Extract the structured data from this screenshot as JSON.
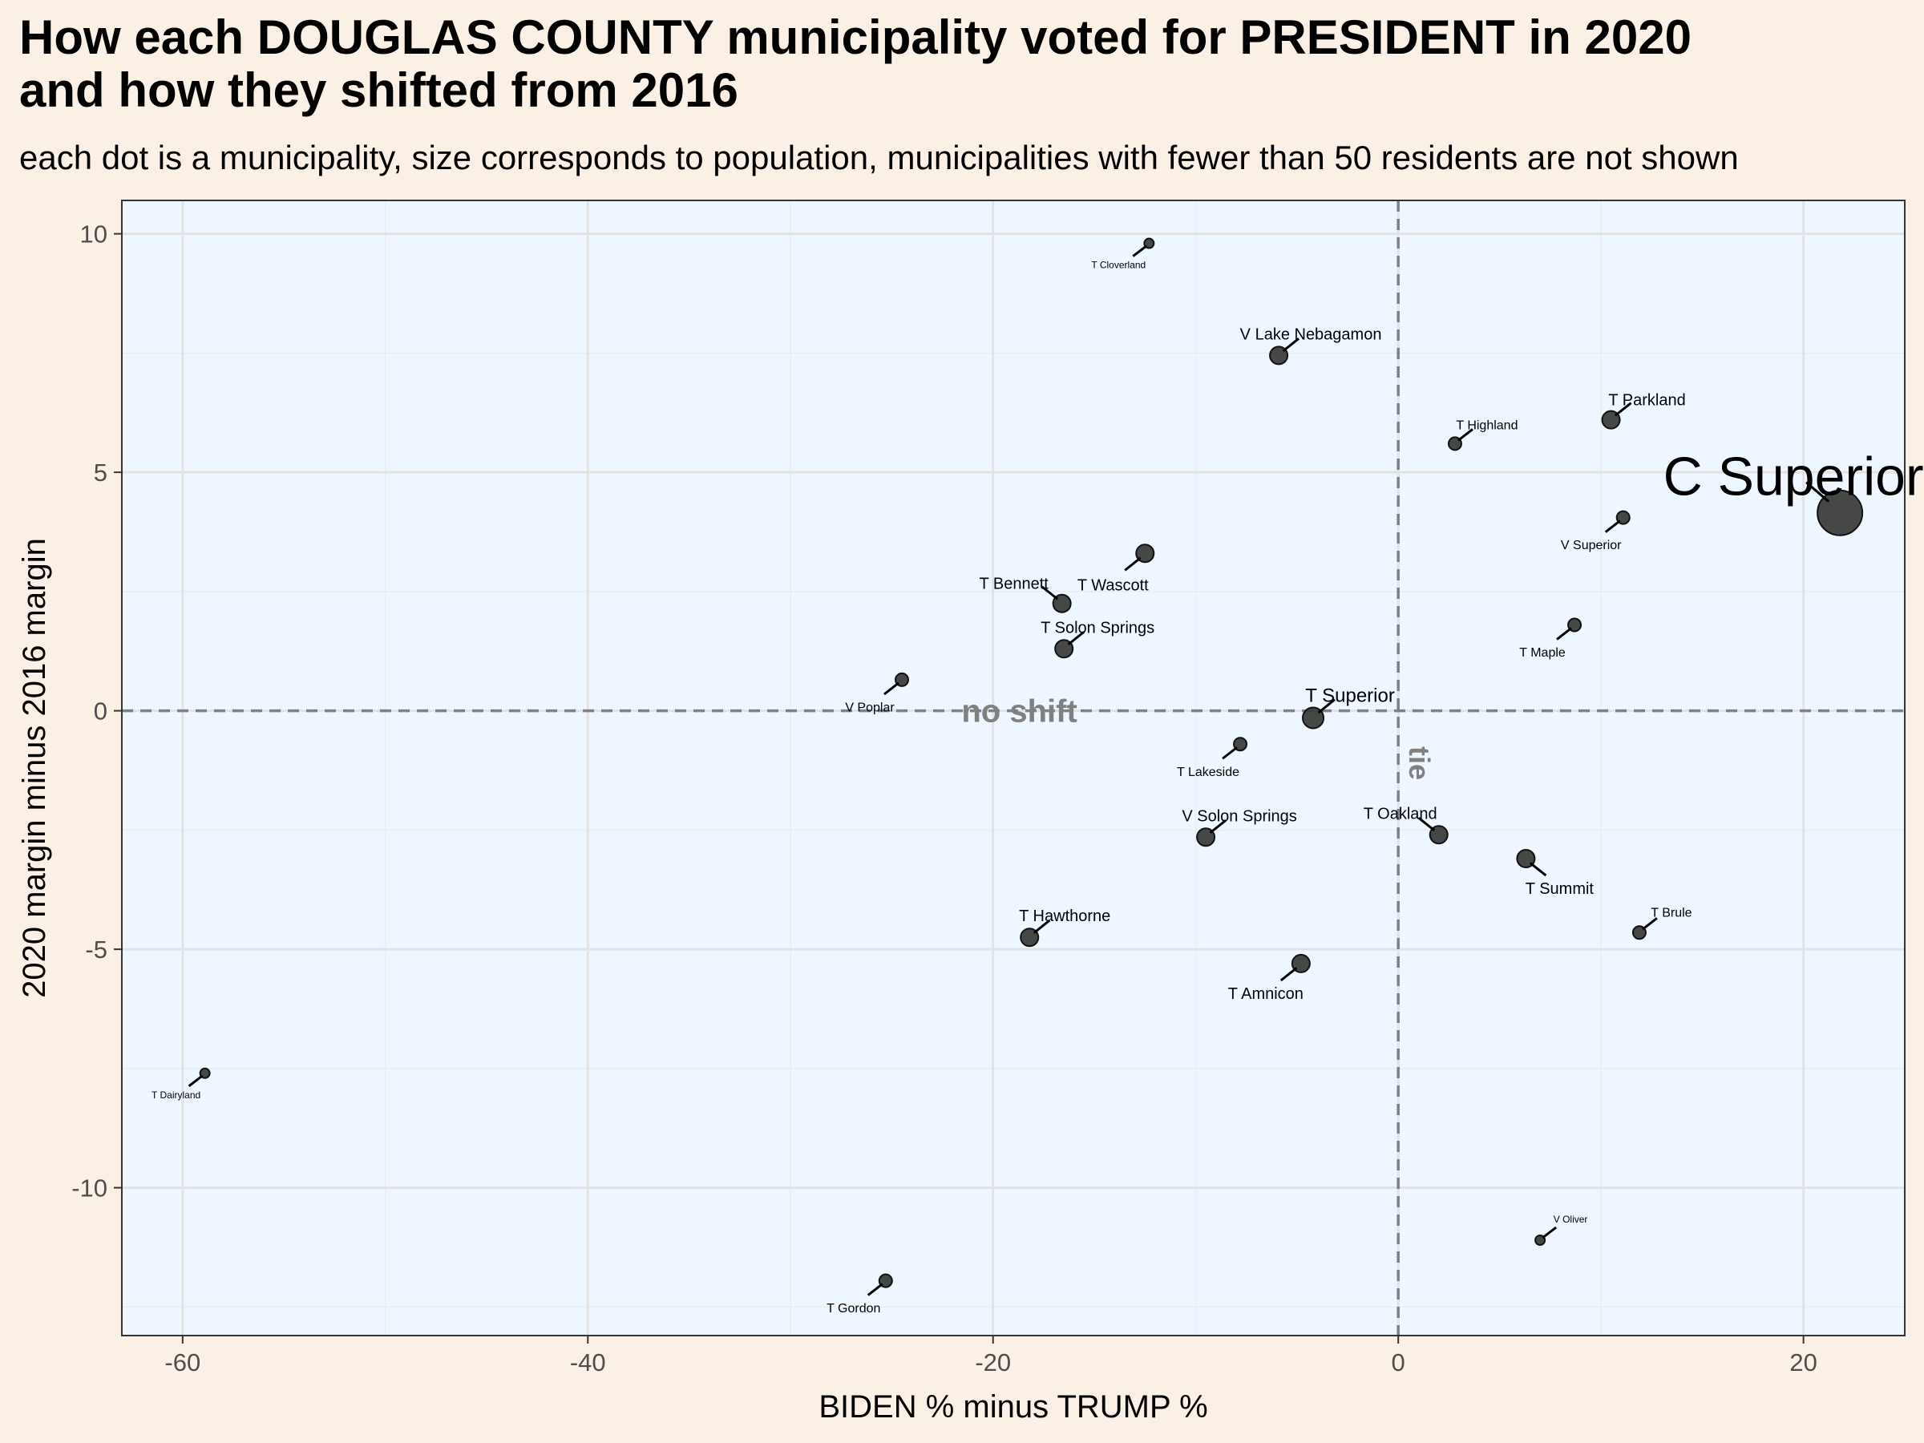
{
  "title_line1": "How each DOUGLAS COUNTY municipality voted for PRESIDENT in 2020",
  "title_line2": "and how they shifted from 2016",
  "subtitle": "each dot is a municipality, size corresponds to population, municipalities with fewer than 50 residents are not shown",
  "colors": {
    "page_background": "#fbf0e5",
    "panel_background": "#eef7ff",
    "grid_major": "#e2e2e2",
    "grid_minor": "#ececec",
    "reference_line": "#808080",
    "points": "#333333"
  },
  "chart_data": {
    "type": "scatter",
    "xlabel": "BIDEN % minus TRUMP %",
    "ylabel": "2020 margin minus 2016 margin",
    "xlim": [
      -63,
      25
    ],
    "ylim": [
      -13.1,
      10.7
    ],
    "xticks": [
      -60,
      -40,
      -20,
      0,
      20
    ],
    "yticks": [
      -10,
      -5,
      0,
      5,
      10
    ],
    "grid": true,
    "reference_lines": [
      {
        "axis": "x",
        "value": 0,
        "label": "tie"
      },
      {
        "axis": "y",
        "value": 0,
        "label": "no shift"
      }
    ],
    "points": [
      {
        "name": "T Cloverland",
        "x": -12.3,
        "y": 9.8,
        "size": "tiny"
      },
      {
        "name": "V Lake Nebagamon",
        "x": -5.9,
        "y": 7.45,
        "size": "medium"
      },
      {
        "name": "T Highland",
        "x": 2.8,
        "y": 5.6,
        "size": "small"
      },
      {
        "name": "T Parkland",
        "x": 10.5,
        "y": 6.1,
        "size": "medium"
      },
      {
        "name": "C Superior",
        "x": 21.8,
        "y": 4.15,
        "size": "huge"
      },
      {
        "name": "V Superior",
        "x": 11.1,
        "y": 4.05,
        "size": "small"
      },
      {
        "name": "T Wascott",
        "x": -12.5,
        "y": 3.3,
        "size": "medium"
      },
      {
        "name": "T Bennett",
        "x": -16.6,
        "y": 2.25,
        "size": "medium"
      },
      {
        "name": "T Maple",
        "x": 8.7,
        "y": 1.8,
        "size": "small"
      },
      {
        "name": "T Solon Springs",
        "x": -16.5,
        "y": 1.3,
        "size": "medium"
      },
      {
        "name": "V Poplar",
        "x": -24.5,
        "y": 0.65,
        "size": "small"
      },
      {
        "name": "T Superior",
        "x": -4.2,
        "y": -0.15,
        "size": "large"
      },
      {
        "name": "T Lakeside",
        "x": -7.8,
        "y": -0.7,
        "size": "small"
      },
      {
        "name": "V Solon Springs",
        "x": -9.5,
        "y": -2.65,
        "size": "medium"
      },
      {
        "name": "T Oakland",
        "x": 2.0,
        "y": -2.6,
        "size": "medium"
      },
      {
        "name": "T Summit",
        "x": 6.3,
        "y": -3.1,
        "size": "medium"
      },
      {
        "name": "T Hawthorne",
        "x": -18.2,
        "y": -4.75,
        "size": "medium"
      },
      {
        "name": "T Brule",
        "x": 11.9,
        "y": -4.65,
        "size": "small"
      },
      {
        "name": "T Amnicon",
        "x": -4.8,
        "y": -5.3,
        "size": "medium"
      },
      {
        "name": "T Dairyland",
        "x": -58.9,
        "y": -7.6,
        "size": "tiny"
      },
      {
        "name": "V Oliver",
        "x": 7.0,
        "y": -11.1,
        "size": "tiny"
      },
      {
        "name": "T Gordon",
        "x": -25.3,
        "y": -11.95,
        "size": "small"
      }
    ]
  }
}
